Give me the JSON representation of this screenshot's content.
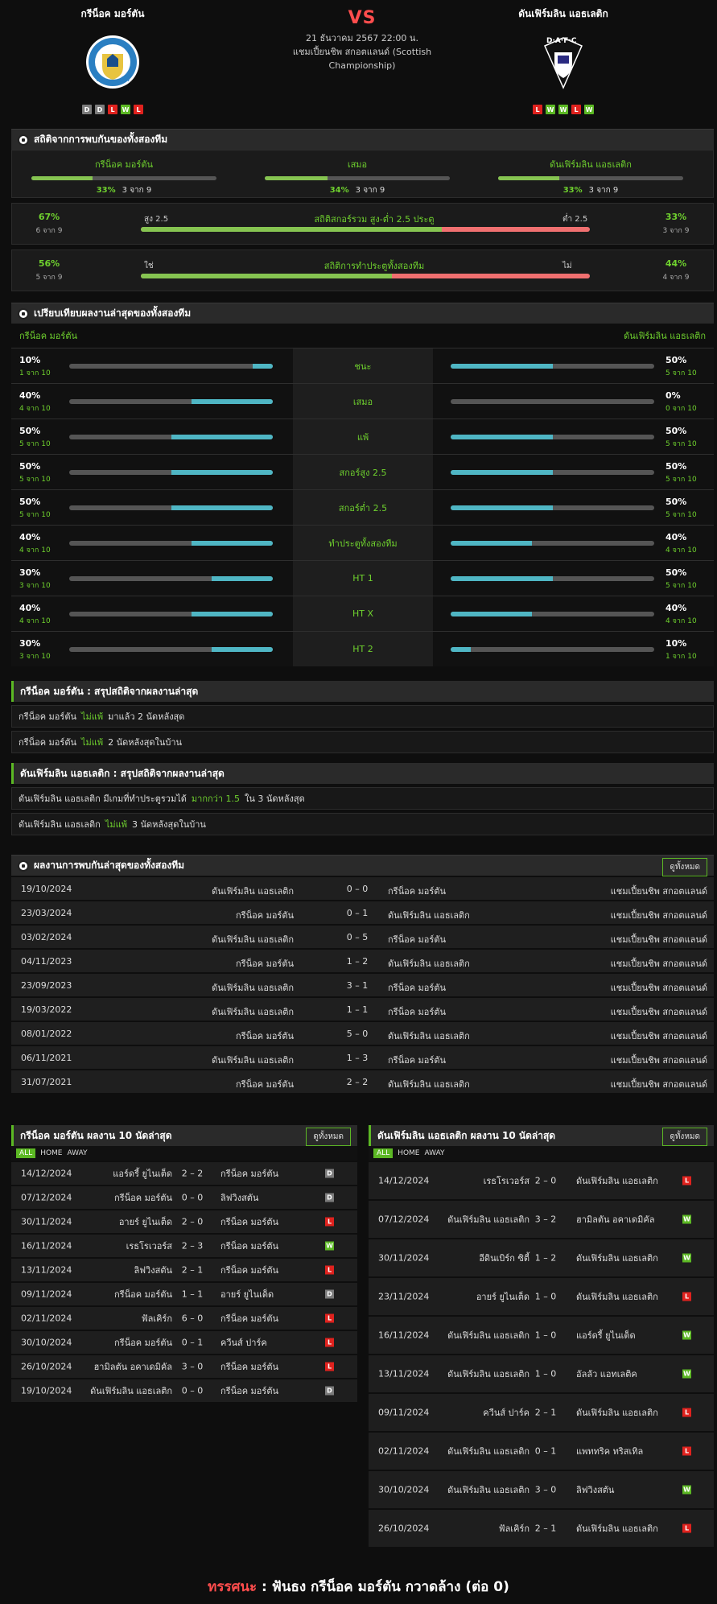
{
  "header": {
    "home": {
      "name": "กรีน็อค มอร์ตัน",
      "form": [
        "D",
        "D",
        "L",
        "W",
        "L"
      ]
    },
    "away": {
      "name": "ดันเฟิร์มลิน แอธเลติก",
      "form": [
        "L",
        "W",
        "W",
        "L",
        "W"
      ]
    },
    "vs": "VS",
    "datetime": "21 ธันวาคม 2567 22:00 น.",
    "league_line1": "แชมเปี้ยนชิพ สกอตแลนด์ (Scottish",
    "league_line2": "Championship)"
  },
  "h2h_stats": {
    "title": "สถิติจากการพบกันของทั้งสองทีม",
    "cols": [
      {
        "label": "กรีน็อค มอร์ตัน",
        "pct": "33%",
        "sub": "3 จาก 9",
        "fill": 0.33
      },
      {
        "label": "เสมอ",
        "pct": "34%",
        "sub": "3 จาก 9",
        "fill": 0.34
      },
      {
        "label": "ดันเฟิร์มลิน แอธเลติก",
        "pct": "33%",
        "sub": "3 จาก 9",
        "fill": 0.33
      }
    ],
    "ou": {
      "lp": "67%",
      "lsub": "6 จาก 9",
      "tl": "สูง 2.5",
      "title": "สถิติสกอร์รวม สูง-ต่ำ 2.5 ประตู",
      "tr": "ต่ำ 2.5",
      "rp": "33%",
      "rsub": "3 จาก 9",
      "fill": 0.67
    },
    "btts": {
      "lp": "56%",
      "lsub": "5 จาก 9",
      "tl": "ใช่",
      "title": "สถิติการทำประตูทั้งสองทีม",
      "tr": "ไม่",
      "rp": "44%",
      "rsub": "4 จาก 9",
      "fill": 0.56
    }
  },
  "compare": {
    "title": "เปรียบเทียบผลงานล่าสุดของทั้งสองทีม",
    "home": "กรีน็อค มอร์ตัน",
    "away": "ดันเฟิร์มลิน แอธเลติก",
    "rows": [
      {
        "label": "ชนะ",
        "lp": "10%",
        "ls": "1 จาก 10",
        "lf": 0.1,
        "rp": "50%",
        "rs": "5 จาก 10",
        "rf": 0.5
      },
      {
        "label": "เสมอ",
        "lp": "40%",
        "ls": "4 จาก 10",
        "lf": 0.4,
        "rp": "0%",
        "rs": "0 จาก 10",
        "rf": 0
      },
      {
        "label": "แพ้",
        "lp": "50%",
        "ls": "5 จาก 10",
        "lf": 0.5,
        "rp": "50%",
        "rs": "5 จาก 10",
        "rf": 0.5
      },
      {
        "label": "สกอร์สูง 2.5",
        "lp": "50%",
        "ls": "5 จาก 10",
        "lf": 0.5,
        "rp": "50%",
        "rs": "5 จาก 10",
        "rf": 0.5
      },
      {
        "label": "สกอร์ต่ำ 2.5",
        "lp": "50%",
        "ls": "5 จาก 10",
        "lf": 0.5,
        "rp": "50%",
        "rs": "5 จาก 10",
        "rf": 0.5
      },
      {
        "label": "ทำประตูทั้งสองทีม",
        "lp": "40%",
        "ls": "4 จาก 10",
        "lf": 0.4,
        "rp": "40%",
        "rs": "4 จาก 10",
        "rf": 0.4
      },
      {
        "label": "HT 1",
        "lp": "30%",
        "ls": "3 จาก 10",
        "lf": 0.3,
        "rp": "50%",
        "rs": "5 จาก 10",
        "rf": 0.5
      },
      {
        "label": "HT X",
        "lp": "40%",
        "ls": "4 จาก 10",
        "lf": 0.4,
        "rp": "40%",
        "rs": "4 จาก 10",
        "rf": 0.4
      },
      {
        "label": "HT 2",
        "lp": "30%",
        "ls": "3 จาก 10",
        "lf": 0.3,
        "rp": "10%",
        "rs": "1 จาก 10",
        "rf": 0.1
      }
    ]
  },
  "summary_home": {
    "title": "กรีน็อค มอร์ตัน : สรุปสถิติจากผลงานล่าสุด",
    "r1": {
      "t": "กรีน็อค มอร์ตัน",
      "g": "ไม่แพ้",
      "e": "มาแล้ว 2 นัดหลังสุด"
    },
    "r2": {
      "t": "กรีน็อค มอร์ตัน",
      "g": "ไม่แพ้",
      "e": "2  นัดหลังสุดในบ้าน"
    }
  },
  "summary_away": {
    "title": "ดันเฟิร์มลิน แอธเลติก : สรุปสถิติจากผลงานล่าสุด",
    "r1": {
      "t": "ดันเฟิร์มลิน แอธเลติก  มีเกมที่ทำประตูรวมได้",
      "g": "มากกว่า  1.5",
      "e": "ใน 3 นัดหลังสุด"
    },
    "r2": {
      "t": "ดันเฟิร์มลิน แอธเลติก",
      "g": "ไม่แพ้",
      "e": "3  นัดหลังสุดในบ้าน"
    }
  },
  "h2h_matches": {
    "title": "ผลงานการพบกันล่าสุดของทั้งสองทีม",
    "view_all": "ดูทั้งหมด",
    "rows": [
      {
        "d": "19/10/2024",
        "h": "ดันเฟิร์มลิน แอธเลติก",
        "s": "0 – 0",
        "a": "กรีน็อค มอร์ตัน",
        "c": "แชมเปี้ยนชิพ สกอตแลนด์"
      },
      {
        "d": "23/03/2024",
        "h": "กรีน็อค มอร์ตัน",
        "s": "0 – 1",
        "a": "ดันเฟิร์มลิน แอธเลติก",
        "c": "แชมเปี้ยนชิพ สกอตแลนด์"
      },
      {
        "d": "03/02/2024",
        "h": "ดันเฟิร์มลิน แอธเลติก",
        "s": "0 – 5",
        "a": "กรีน็อค มอร์ตัน",
        "c": "แชมเปี้ยนชิพ สกอตแลนด์"
      },
      {
        "d": "04/11/2023",
        "h": "กรีน็อค มอร์ตัน",
        "s": "1 – 2",
        "a": "ดันเฟิร์มลิน แอธเลติก",
        "c": "แชมเปี้ยนชิพ สกอตแลนด์"
      },
      {
        "d": "23/09/2023",
        "h": "ดันเฟิร์มลิน แอธเลติก",
        "s": "3 – 1",
        "a": "กรีน็อค มอร์ตัน",
        "c": "แชมเปี้ยนชิพ สกอตแลนด์"
      },
      {
        "d": "19/03/2022",
        "h": "ดันเฟิร์มลิน แอธเลติก",
        "s": "1 – 1",
        "a": "กรีน็อค มอร์ตัน",
        "c": "แชมเปี้ยนชิพ สกอตแลนด์"
      },
      {
        "d": "08/01/2022",
        "h": "กรีน็อค มอร์ตัน",
        "s": "5 – 0",
        "a": "ดันเฟิร์มลิน แอธเลติก",
        "c": "แชมเปี้ยนชิพ สกอตแลนด์"
      },
      {
        "d": "06/11/2021",
        "h": "ดันเฟิร์มลิน แอธเลติก",
        "s": "1 – 3",
        "a": "กรีน็อค มอร์ตัน",
        "c": "แชมเปี้ยนชิพ สกอตแลนด์"
      },
      {
        "d": "31/07/2021",
        "h": "กรีน็อค มอร์ตัน",
        "s": "2 – 2",
        "a": "ดันเฟิร์มลิน แอธเลติก",
        "c": "แชมเปี้ยนชิพ สกอตแลนด์"
      }
    ]
  },
  "filters": [
    "ALL",
    "HOME",
    "AWAY"
  ],
  "last_home": {
    "title": "กรีน็อค มอร์ตัน ผลงาน 10 นัดล่าสุด",
    "view_all": "ดูทั้งหมด",
    "rows": [
      {
        "d": "14/12/2024",
        "h": "แอร์ดรี้ ยูไนเต็ด",
        "s": "2 – 2",
        "a": "กรีน็อค มอร์ตัน",
        "r": "D"
      },
      {
        "d": "07/12/2024",
        "h": "กรีน็อค มอร์ตัน",
        "s": "0 – 0",
        "a": "ลิฟวิงสตัน",
        "r": "D"
      },
      {
        "d": "30/11/2024",
        "h": "อายร์ ยูไนเต็ด",
        "s": "2 – 0",
        "a": "กรีน็อค มอร์ตัน",
        "r": "L"
      },
      {
        "d": "16/11/2024",
        "h": "เรธโรเวอร์ส",
        "s": "2 – 3",
        "a": "กรีน็อค มอร์ตัน",
        "r": "W"
      },
      {
        "d": "13/11/2024",
        "h": "ลิฟวิงสตัน",
        "s": "2 – 1",
        "a": "กรีน็อค มอร์ตัน",
        "r": "L"
      },
      {
        "d": "09/11/2024",
        "h": "กรีน็อค มอร์ตัน",
        "s": "1 – 1",
        "a": "อายร์ ยูไนเต็ด",
        "r": "D"
      },
      {
        "d": "02/11/2024",
        "h": "ฟัลเคิร์ก",
        "s": "6 – 0",
        "a": "กรีน็อค มอร์ตัน",
        "r": "L"
      },
      {
        "d": "30/10/2024",
        "h": "กรีน็อค มอร์ตัน",
        "s": "0 – 1",
        "a": "ควีนส์ ปาร์ค",
        "r": "L"
      },
      {
        "d": "26/10/2024",
        "h": "ฮามิลตัน อคาเดมิคัล",
        "s": "3 – 0",
        "a": "กรีน็อค มอร์ตัน",
        "r": "L"
      },
      {
        "d": "19/10/2024",
        "h": "ดันเฟิร์มลิน แอธเลติก",
        "s": "0 – 0",
        "a": "กรีน็อค มอร์ตัน",
        "r": "D"
      }
    ]
  },
  "last_away": {
    "title": "ดันเฟิร์มลิน แอธเลติก ผลงาน 10 นัดล่าสุด",
    "view_all": "ดูทั้งหมด",
    "rows": [
      {
        "d": "14/12/2024",
        "h": "เรธโรเวอร์ส",
        "s": "2 – 0",
        "a": "ดันเฟิร์มลิน แอธเลติก",
        "r": "L"
      },
      {
        "d": "07/12/2024",
        "h": "ดันเฟิร์มลิน แอธเลติก",
        "s": "3 – 2",
        "a": "ฮามิลตัน อคาเดมิคัล",
        "r": "W"
      },
      {
        "d": "30/11/2024",
        "h": "อีดินเบิร์ก ซิตี้",
        "s": "1 – 2",
        "a": "ดันเฟิร์มลิน แอธเลติก",
        "r": "W"
      },
      {
        "d": "23/11/2024",
        "h": "อายร์ ยูไนเต็ด",
        "s": "1 – 0",
        "a": "ดันเฟิร์มลิน แอธเลติก",
        "r": "L"
      },
      {
        "d": "16/11/2024",
        "h": "ดันเฟิร์มลิน แอธเลติก",
        "s": "1 – 0",
        "a": "แอร์ดรี้ ยูไนเต็ด",
        "r": "W"
      },
      {
        "d": "13/11/2024",
        "h": "ดันเฟิร์มลิน แอธเลติก",
        "s": "1 – 0",
        "a": "อัลลัว แอทเลติค",
        "r": "W"
      },
      {
        "d": "09/11/2024",
        "h": "ควีนส์ ปาร์ค",
        "s": "2 – 1",
        "a": "ดันเฟิร์มลิน แอธเลติก",
        "r": "L"
      },
      {
        "d": "02/11/2024",
        "h": "ดันเฟิร์มลิน แอธเลติก",
        "s": "0 – 1",
        "a": "แพททริค ทริสเทิล",
        "r": "L"
      },
      {
        "d": "30/10/2024",
        "h": "ดันเฟิร์มลิน แอธเลติก",
        "s": "3 – 0",
        "a": "ลิฟวิงสตัน",
        "r": "W"
      },
      {
        "d": "26/10/2024",
        "h": "ฟัลเคิร์ก",
        "s": "2 – 1",
        "a": "ดันเฟิร์มลิน แอธเลติก",
        "r": "L"
      }
    ]
  },
  "verdict": {
    "k": "ทรรศนะ",
    "sep": " :  ",
    "t": "ฟันธง กรีน็อค มอร์ตัน กวาดล้าง (ต่อ 0)"
  }
}
